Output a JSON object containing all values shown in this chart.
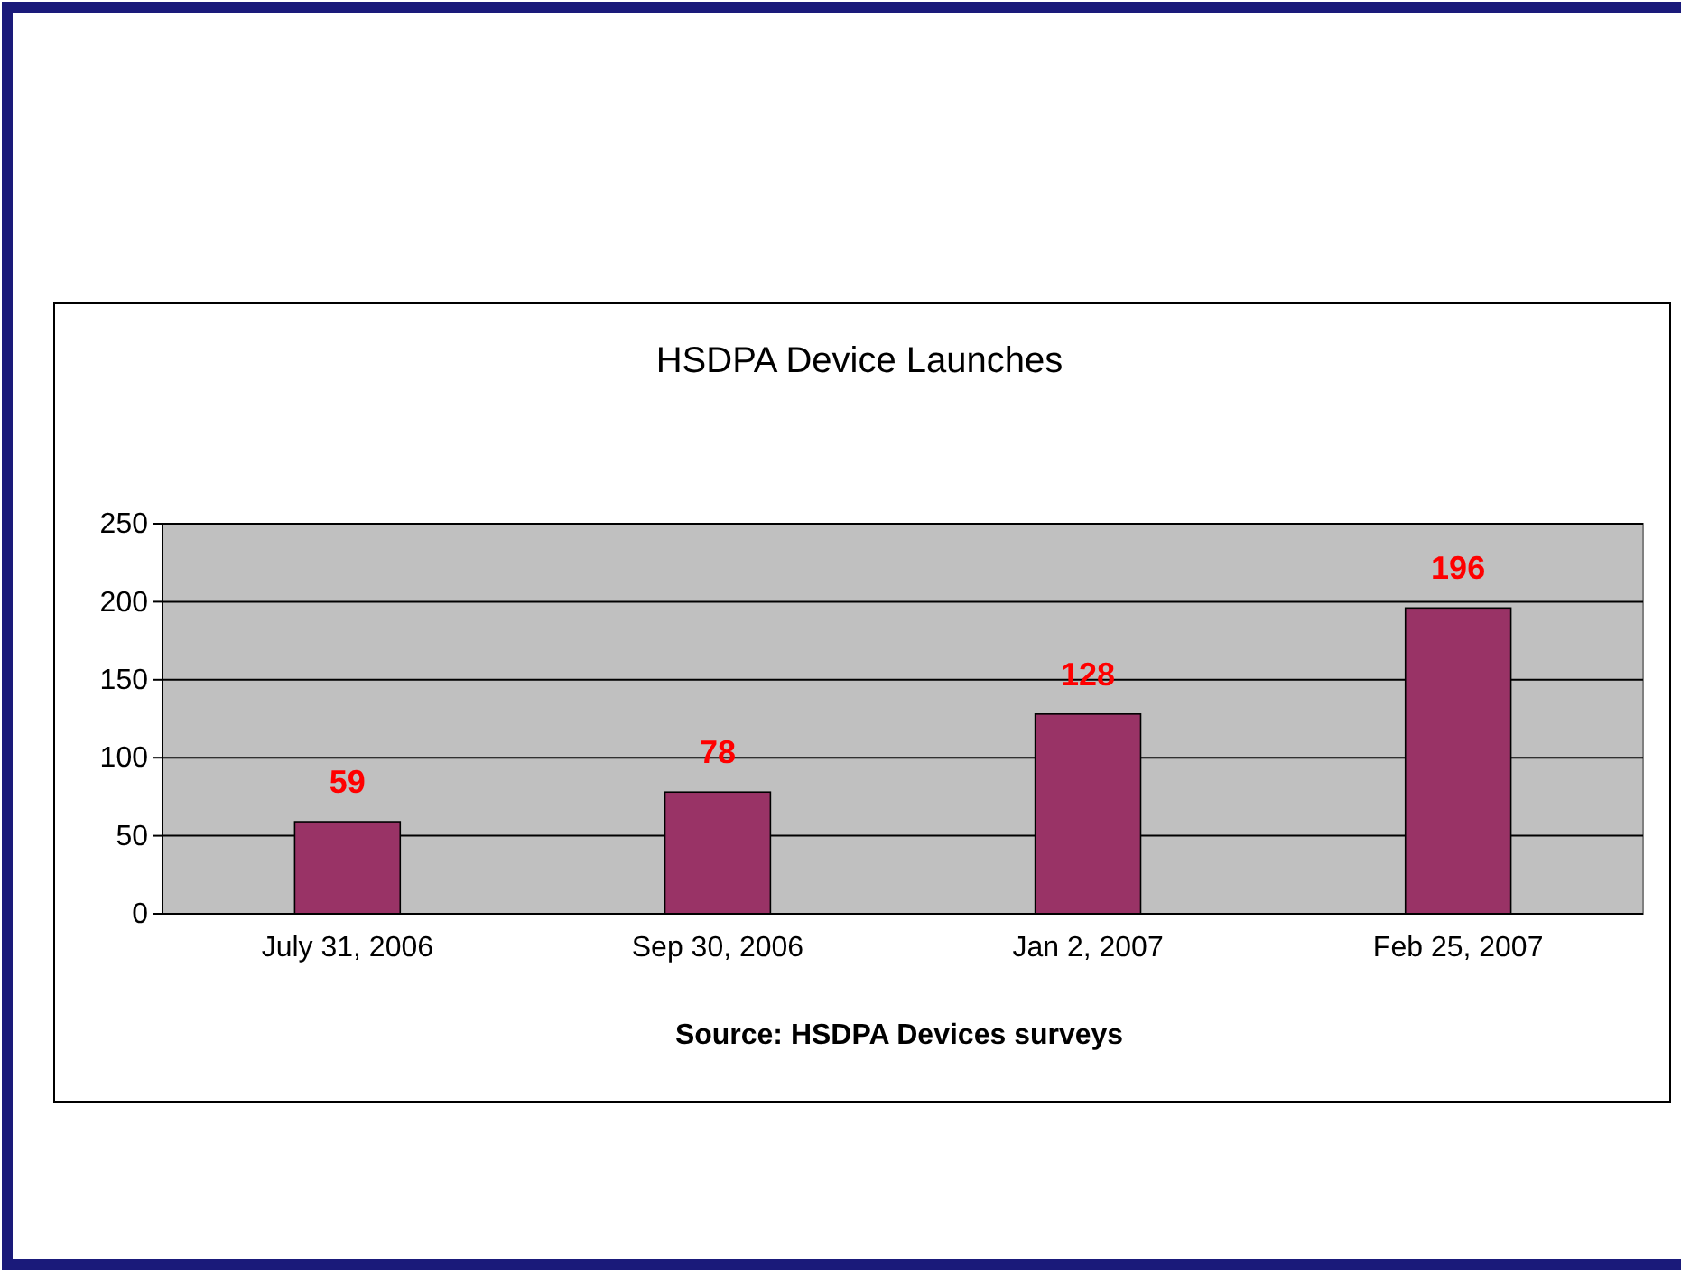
{
  "chart_data": {
    "type": "bar",
    "title": "HSDPA Device Launches",
    "categories": [
      "July 31, 2006",
      "Sep 30, 2006",
      "Jan 2, 2007",
      "Feb 25, 2007"
    ],
    "values": [
      59,
      78,
      128,
      196
    ],
    "color": "#993366",
    "ylim": [
      0,
      250
    ],
    "yticks": [
      0,
      50,
      100,
      150,
      200,
      250
    ],
    "grid": "y",
    "data_labels": true,
    "annotations": [
      "Source: HSDPA Devices surveys"
    ]
  }
}
